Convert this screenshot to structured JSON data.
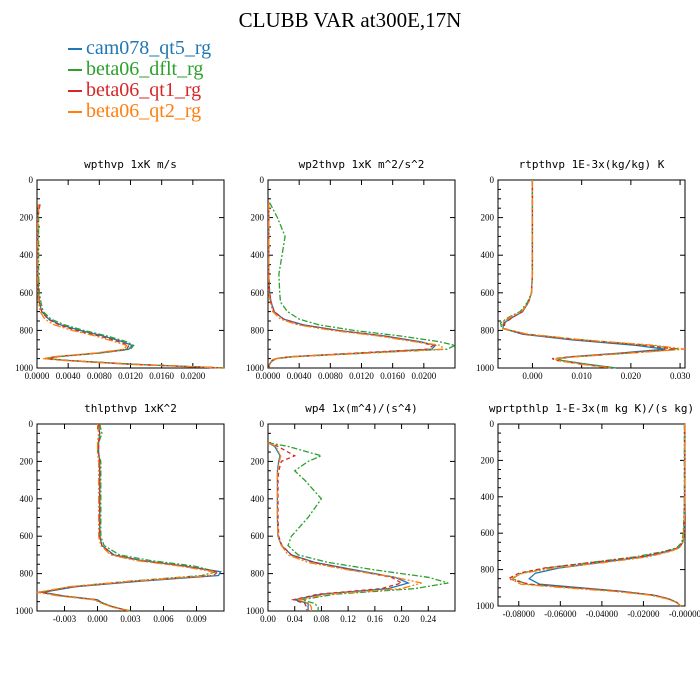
{
  "title": "CLUBB VAR at300E,17N",
  "legend": [
    {
      "label": "cam078_qt5_rg",
      "color": "#1f77b4"
    },
    {
      "label": "beta06_dflt_rg",
      "color": "#2ca02c"
    },
    {
      "label": "beta06_qt1_rg",
      "color": "#d62728"
    },
    {
      "label": "beta06_qt2_rg",
      "color": "#ff7f0e"
    }
  ],
  "chart_data": [
    {
      "type": "line",
      "title": "wpthvp  1xK m/s",
      "xlim": [
        0,
        0.024
      ],
      "ylim": [
        1000,
        0
      ],
      "y_inverted": true,
      "xticks": [
        "0.0000",
        "0.0040",
        "0.0080",
        "0.0120",
        "0.0160",
        "0.0200"
      ],
      "xtick_values": [
        0,
        0.004,
        0.008,
        0.012,
        0.016,
        0.02
      ],
      "yticks": [
        "0",
        "200",
        "400",
        "600",
        "800",
        "1000"
      ],
      "y": [
        130,
        150,
        200,
        300,
        400,
        500,
        600,
        650,
        700,
        740,
        770,
        800,
        830,
        860,
        880,
        900,
        920,
        940,
        950,
        960,
        980,
        1000
      ],
      "series": [
        {
          "name": "cam078_qt5_rg",
          "color": "#1f77b4",
          "values": [
            0.0002,
            0.0002,
            0.0001,
            0.0001,
            0.0001,
            0.0001,
            0.0002,
            0.0003,
            0.0006,
            0.0015,
            0.003,
            0.0055,
            0.0085,
            0.011,
            0.0122,
            0.0118,
            0.008,
            0.0025,
            0.001,
            0.004,
            0.012,
            0.024
          ]
        },
        {
          "name": "beta06_dflt_rg",
          "color": "#2ca02c",
          "values": [
            0.0002,
            0.0002,
            0.0002,
            0.0002,
            0.0002,
            0.0002,
            0.0003,
            0.0005,
            0.0008,
            0.0018,
            0.0035,
            0.006,
            0.009,
            0.0115,
            0.0124,
            0.012,
            0.0082,
            0.0028,
            0.0012,
            0.0042,
            0.0125,
            0.024
          ]
        },
        {
          "name": "beta06_qt1_rg",
          "color": "#d62728",
          "values": [
            0.0004,
            0.0003,
            0.0001,
            0.0001,
            0.0001,
            0.0001,
            0.0002,
            0.0003,
            0.0006,
            0.0014,
            0.0028,
            0.005,
            0.008,
            0.0105,
            0.0118,
            0.0115,
            0.0078,
            0.0024,
            0.001,
            0.0038,
            0.0118,
            0.024
          ]
        },
        {
          "name": "beta06_qt2_rg",
          "color": "#ff7f0e",
          "values": [
            0.0002,
            0.0002,
            0.0001,
            0.0001,
            0.0001,
            0.0001,
            0.0001,
            0.0002,
            0.0004,
            0.001,
            0.0022,
            0.0045,
            0.0075,
            0.01,
            0.0115,
            0.0112,
            0.0075,
            0.0022,
            0.0008,
            0.0035,
            0.0115,
            0.024
          ]
        }
      ]
    },
    {
      "type": "line",
      "title": "wp2thvp  1xK m^2/s^2",
      "xlim": [
        0,
        0.024
      ],
      "ylim": [
        1000,
        0
      ],
      "y_inverted": true,
      "xticks": [
        "0.0000",
        "0.0040",
        "0.0080",
        "0.0120",
        "0.0160",
        "0.0200"
      ],
      "xtick_values": [
        0,
        0.004,
        0.008,
        0.012,
        0.016,
        0.02
      ],
      "yticks": [
        "0",
        "200",
        "400",
        "600",
        "800",
        "1000"
      ],
      "y": [
        120,
        200,
        300,
        400,
        500,
        600,
        650,
        700,
        740,
        770,
        800,
        830,
        860,
        880,
        900,
        920,
        940,
        950,
        960,
        980,
        1000
      ],
      "series": [
        {
          "name": "cam078_qt5_rg",
          "color": "#1f77b4",
          "values": [
            0.0001,
            0.0001,
            0.0001,
            0.0001,
            0.0001,
            0.0002,
            0.0004,
            0.0008,
            0.002,
            0.0045,
            0.009,
            0.015,
            0.0195,
            0.0215,
            0.021,
            0.012,
            0.003,
            0.001,
            0.0005,
            0.0002,
            0.0001
          ]
        },
        {
          "name": "beta06_dflt_rg",
          "color": "#2ca02c",
          "values": [
            0.0002,
            0.0012,
            0.0022,
            0.0018,
            0.0014,
            0.0015,
            0.0016,
            0.0025,
            0.004,
            0.0065,
            0.011,
            0.017,
            0.022,
            0.024,
            0.023,
            0.013,
            0.0035,
            0.0012,
            0.0006,
            0.0002,
            0.0001
          ]
        },
        {
          "name": "beta06_qt1_rg",
          "color": "#d62728",
          "values": [
            0.0001,
            0.0001,
            0.0001,
            0.0001,
            0.0001,
            0.0002,
            0.0004,
            0.0008,
            0.002,
            0.0042,
            0.0088,
            0.0148,
            0.0192,
            0.0212,
            0.0205,
            0.0115,
            0.0028,
            0.001,
            0.0005,
            0.0002,
            0.0001
          ]
        },
        {
          "name": "beta06_qt2_rg",
          "color": "#ff7f0e",
          "values": [
            0.0001,
            0.0001,
            0.0001,
            0.0001,
            0.0001,
            0.0001,
            0.0003,
            0.0006,
            0.0016,
            0.0038,
            0.0082,
            0.0142,
            0.0188,
            0.0222,
            0.0225,
            0.013,
            0.0032,
            0.0011,
            0.0005,
            0.0002,
            0.0001
          ]
        }
      ]
    },
    {
      "type": "line",
      "title": "rtpthvp  1E-3x(kg/kg) K",
      "xlim": [
        -0.007,
        0.031
      ],
      "ylim": [
        1000,
        0
      ],
      "y_inverted": true,
      "xticks": [
        "0.000",
        "0.010",
        "0.020",
        "0.030"
      ],
      "xtick_values": [
        0,
        0.01,
        0.02,
        0.03
      ],
      "yticks": [
        "0",
        "200",
        "400",
        "600",
        "800",
        "1000"
      ],
      "y": [
        0,
        100,
        200,
        300,
        400,
        500,
        600,
        650,
        700,
        730,
        760,
        790,
        820,
        850,
        880,
        900,
        920,
        940,
        950,
        960,
        980,
        1000
      ],
      "series": [
        {
          "name": "cam078_qt5_rg",
          "color": "#1f77b4",
          "values": [
            0.0,
            0.0,
            0.0,
            0.0,
            0.0,
            0.0,
            -0.0002,
            -0.0008,
            -0.002,
            -0.004,
            -0.0058,
            -0.006,
            -0.002,
            0.008,
            0.021,
            0.027,
            0.018,
            0.008,
            0.005,
            0.006,
            0.011,
            0.017
          ]
        },
        {
          "name": "beta06_dflt_rg",
          "color": "#2ca02c",
          "values": [
            0.0,
            0.0,
            0.0,
            0.0,
            0.0,
            0.0,
            -0.0002,
            -0.001,
            -0.0025,
            -0.0048,
            -0.0065,
            -0.0062,
            -0.001,
            0.01,
            0.024,
            0.03,
            0.02,
            0.009,
            0.005,
            0.006,
            0.011,
            0.017
          ]
        },
        {
          "name": "beta06_qt1_rg",
          "color": "#d62728",
          "values": [
            0.0,
            0.0,
            0.0,
            0.0,
            0.0,
            0.0,
            -0.0002,
            -0.0008,
            -0.002,
            -0.004,
            -0.0056,
            -0.0058,
            -0.0015,
            0.009,
            0.023,
            0.029,
            0.019,
            0.008,
            0.004,
            0.005,
            0.01,
            0.016
          ]
        },
        {
          "name": "beta06_qt2_rg",
          "color": "#ff7f0e",
          "values": [
            0.0,
            0.0,
            0.0,
            0.0,
            0.0,
            0.0,
            -0.0002,
            -0.0008,
            -0.0022,
            -0.0045,
            -0.0062,
            -0.006,
            -0.001,
            0.01,
            0.025,
            0.031,
            0.02,
            0.009,
            0.0045,
            0.005,
            0.01,
            0.016
          ]
        }
      ]
    },
    {
      "type": "line",
      "title": "thlpthvp  1xK^2",
      "xlim": [
        -0.0055,
        0.0115
      ],
      "ylim": [
        1000,
        0
      ],
      "y_inverted": true,
      "xticks": [
        "-0.003",
        "0.000",
        "0.003",
        "0.006",
        "0.009"
      ],
      "xtick_values": [
        -0.003,
        0,
        0.003,
        0.006,
        0.009
      ],
      "yticks": [
        "0",
        "200",
        "400",
        "600",
        "800",
        "1000"
      ],
      "y": [
        0,
        50,
        100,
        150,
        200,
        300,
        400,
        500,
        600,
        650,
        700,
        730,
        760,
        790,
        810,
        840,
        870,
        900,
        920,
        940,
        960,
        980,
        1000
      ],
      "series": [
        {
          "name": "cam078_qt5_rg",
          "color": "#1f77b4",
          "values": [
            0.0001,
            0.0002,
            0.0001,
            0.0001,
            0.0002,
            0.0002,
            0.0002,
            0.0002,
            0.0002,
            0.0004,
            0.0015,
            0.004,
            0.008,
            0.0112,
            0.011,
            0.004,
            -0.002,
            -0.005,
            -0.003,
            0.0,
            0.0005,
            0.0015,
            0.003
          ]
        },
        {
          "name": "beta06_dflt_rg",
          "color": "#2ca02c",
          "values": [
            0.0002,
            0.0004,
            0.0001,
            0.0,
            0.0003,
            0.0003,
            0.0003,
            0.0003,
            0.0003,
            0.0006,
            0.002,
            0.0048,
            0.0088,
            0.0108,
            0.0095,
            0.003,
            -0.0025,
            -0.0052,
            -0.0032,
            -0.0002,
            0.0006,
            0.0016,
            0.003
          ]
        },
        {
          "name": "beta06_qt1_rg",
          "color": "#d62728",
          "values": [
            0.0001,
            0.0002,
            0.0001,
            0.0001,
            0.0002,
            0.0002,
            0.0002,
            0.0002,
            0.0002,
            0.0004,
            0.0014,
            0.0038,
            0.0078,
            0.011,
            0.0105,
            0.0035,
            -0.0022,
            -0.0052,
            -0.0032,
            -0.0001,
            0.0005,
            0.0015,
            0.003
          ]
        },
        {
          "name": "beta06_qt2_rg",
          "color": "#ff7f0e",
          "values": [
            0.0,
            0.0001,
            0.0,
            0.0,
            0.0001,
            0.0001,
            0.0001,
            0.0001,
            0.0001,
            0.0003,
            0.0012,
            0.0035,
            0.0075,
            0.0105,
            0.0102,
            0.0032,
            -0.0025,
            -0.0055,
            -0.0035,
            -0.0003,
            0.0004,
            0.0014,
            0.003
          ]
        }
      ]
    },
    {
      "type": "line",
      "title": "wp4  1x(m^4)/(s^4)",
      "xlim": [
        0,
        0.28
      ],
      "ylim": [
        1000,
        0
      ],
      "y_inverted": true,
      "xticks": [
        "0.00",
        "0.04",
        "0.08",
        "0.12",
        "0.16",
        "0.20",
        "0.24"
      ],
      "xtick_values": [
        0,
        0.04,
        0.08,
        0.12,
        0.16,
        0.2,
        0.24
      ],
      "yticks": [
        "0",
        "200",
        "400",
        "600",
        "800",
        "1000"
      ],
      "y": [
        100,
        120,
        150,
        170,
        200,
        250,
        300,
        400,
        500,
        600,
        650,
        700,
        740,
        780,
        820,
        850,
        880,
        910,
        940,
        960,
        980,
        1000
      ],
      "series": [
        {
          "name": "cam078_qt5_rg",
          "color": "#1f77b4",
          "values": [
            0.0,
            0.01,
            0.015,
            0.018,
            0.016,
            0.014,
            0.014,
            0.014,
            0.014,
            0.015,
            0.02,
            0.035,
            0.07,
            0.13,
            0.19,
            0.21,
            0.18,
            0.08,
            0.04,
            0.06,
            0.06,
            0.06
          ]
        },
        {
          "name": "beta06_dflt_rg",
          "color": "#2ca02c",
          "values": [
            0.0,
            0.03,
            0.06,
            0.08,
            0.06,
            0.04,
            0.055,
            0.08,
            0.06,
            0.035,
            0.03,
            0.045,
            0.09,
            0.16,
            0.24,
            0.27,
            0.22,
            0.1,
            0.05,
            0.07,
            0.075,
            0.075
          ]
        },
        {
          "name": "beta06_qt1_rg",
          "color": "#d62728",
          "values": [
            0.0,
            0.015,
            0.03,
            0.04,
            0.02,
            0.016,
            0.015,
            0.015,
            0.015,
            0.016,
            0.021,
            0.035,
            0.068,
            0.125,
            0.185,
            0.2,
            0.17,
            0.075,
            0.038,
            0.055,
            0.058,
            0.058
          ]
        },
        {
          "name": "beta06_qt2_rg",
          "color": "#ff7f0e",
          "values": [
            0.0,
            0.012,
            0.016,
            0.019,
            0.017,
            0.014,
            0.014,
            0.014,
            0.014,
            0.015,
            0.02,
            0.03,
            0.06,
            0.12,
            0.19,
            0.23,
            0.2,
            0.09,
            0.045,
            0.062,
            0.065,
            0.065
          ]
        }
      ]
    },
    {
      "type": "line",
      "title": "wprtpthlp  1-E-3x(m kg K)/(s kg)",
      "xlim": [
        -0.09,
        0.0
      ],
      "ylim": [
        1000,
        0
      ],
      "y_inverted": true,
      "xticks": [
        "-0.08000",
        "-0.06000",
        "-0.04000",
        "-0.02000",
        "-0.00000"
      ],
      "xtick_values": [
        -0.08,
        -0.06,
        -0.04,
        -0.02,
        0.0
      ],
      "yticks": [
        "0",
        "200",
        "400",
        "600",
        "800",
        "1000"
      ],
      "y": [
        0,
        200,
        400,
        500,
        600,
        650,
        680,
        700,
        730,
        760,
        790,
        820,
        850,
        880,
        900,
        920,
        940,
        960,
        980,
        1000
      ],
      "series": [
        {
          "name": "cam078_qt5_rg",
          "color": "#1f77b4",
          "values": [
            -0.0002,
            -0.0002,
            -0.0002,
            -0.0003,
            -0.0005,
            -0.001,
            -0.003,
            -0.008,
            -0.02,
            -0.04,
            -0.06,
            -0.072,
            -0.075,
            -0.07,
            -0.05,
            -0.03,
            -0.015,
            -0.008,
            -0.004,
            -0.002
          ]
        },
        {
          "name": "beta06_dflt_rg",
          "color": "#2ca02c",
          "values": [
            -0.0003,
            -0.0003,
            -0.0003,
            -0.0005,
            -0.0008,
            -0.0015,
            -0.004,
            -0.01,
            -0.024,
            -0.045,
            -0.066,
            -0.079,
            -0.083,
            -0.076,
            -0.054,
            -0.032,
            -0.016,
            -0.008,
            -0.004,
            -0.002
          ]
        },
        {
          "name": "beta06_qt1_rg",
          "color": "#d62728",
          "values": [
            -0.0002,
            -0.0002,
            -0.0002,
            -0.0003,
            -0.0005,
            -0.001,
            -0.003,
            -0.009,
            -0.022,
            -0.044,
            -0.067,
            -0.08,
            -0.085,
            -0.075,
            -0.052,
            -0.031,
            -0.015,
            -0.008,
            -0.004,
            -0.002
          ]
        },
        {
          "name": "beta06_qt2_rg",
          "color": "#ff7f0e",
          "values": [
            -0.0002,
            -0.0002,
            -0.0002,
            -0.0003,
            -0.0005,
            -0.001,
            -0.0025,
            -0.007,
            -0.018,
            -0.038,
            -0.062,
            -0.078,
            -0.084,
            -0.079,
            -0.058,
            -0.034,
            -0.017,
            -0.009,
            -0.004,
            -0.002
          ]
        }
      ]
    }
  ]
}
